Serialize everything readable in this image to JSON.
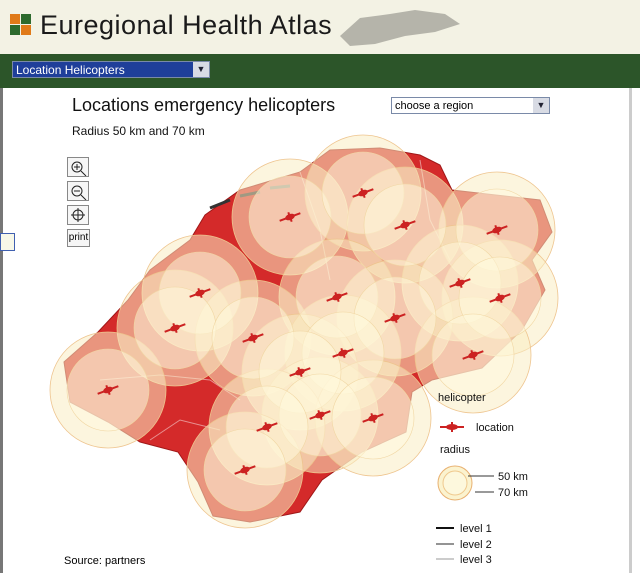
{
  "header": {
    "title": "Euregional Health Atlas",
    "theme_select": "Location Helicopters"
  },
  "map": {
    "title": "Locations emergency helicopters",
    "subtitle": "Radius 50 km and 70 km",
    "region_select": "choose a region",
    "print_button": "print",
    "source": "Source: partners"
  },
  "legend": {
    "helicopter_heading": "helicopter",
    "location": "location",
    "radius_heading": "radius",
    "inner_radius": "50 km",
    "outer_radius": "70 km",
    "levels": [
      "level 1",
      "level 2",
      "level 3"
    ]
  }
}
